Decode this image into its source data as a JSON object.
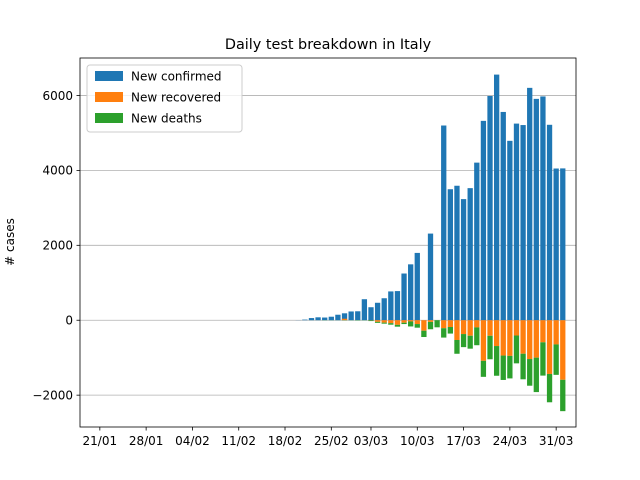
{
  "chart_data": {
    "type": "bar",
    "title": "Daily test breakdown in Italy",
    "xlabel": "",
    "ylabel": "# cases",
    "ylim": [
      -2850,
      7000
    ],
    "yticks": [
      -2000,
      0,
      2000,
      4000,
      6000
    ],
    "ytick_labels": [
      "−2000",
      "0",
      "2000",
      "4000",
      "6000"
    ],
    "xtick_labels": [
      "21/01",
      "28/01",
      "04/02",
      "11/02",
      "18/02",
      "25/02",
      "03/03",
      "10/03",
      "17/03",
      "24/03",
      "31/03"
    ],
    "xtick_day_index": [
      0,
      7,
      14,
      21,
      28,
      35,
      41,
      48,
      55,
      62,
      69
    ],
    "x_range_days": [
      -3,
      72
    ],
    "grid": "horizontal",
    "legend_position": "top-left",
    "series": [
      {
        "name": "New confirmed",
        "color": "#1f77b4"
      },
      {
        "name": "New recovered",
        "color": "#ff7f0e"
      },
      {
        "name": "New deaths",
        "color": "#2ca02c"
      }
    ],
    "start_date": "2020-01-21",
    "dates": [
      "21/01",
      "22/01",
      "23/01",
      "24/01",
      "25/01",
      "26/01",
      "27/01",
      "28/01",
      "29/01",
      "30/01",
      "31/01",
      "01/02",
      "02/02",
      "03/02",
      "04/02",
      "05/02",
      "06/02",
      "07/02",
      "08/02",
      "09/02",
      "10/02",
      "11/02",
      "12/02",
      "13/02",
      "14/02",
      "15/02",
      "16/02",
      "17/02",
      "18/02",
      "19/02",
      "20/02",
      "21/02",
      "22/02",
      "23/02",
      "24/02",
      "25/02",
      "26/02",
      "27/02",
      "28/02",
      "29/02",
      "01/03",
      "02/03",
      "03/03",
      "04/03",
      "05/03",
      "06/03",
      "07/03",
      "08/03",
      "09/03",
      "10/03",
      "11/03",
      "12/03",
      "13/03",
      "14/03",
      "15/03",
      "16/03",
      "17/03",
      "18/03",
      "19/03",
      "20/03",
      "21/03",
      "22/03",
      "23/03",
      "24/03",
      "25/03",
      "26/03",
      "27/03",
      "28/03",
      "29/03",
      "30/03",
      "31/03"
    ],
    "new_confirmed": [
      0,
      0,
      0,
      0,
      0,
      0,
      0,
      0,
      0,
      0,
      0,
      0,
      0,
      0,
      0,
      0,
      0,
      0,
      0,
      0,
      0,
      0,
      0,
      0,
      0,
      0,
      0,
      0,
      0,
      0,
      3,
      17,
      58,
      78,
      72,
      94,
      147,
      185,
      234,
      239,
      561,
      347,
      466,
      587,
      769,
      778,
      1247,
      1492,
      1797,
      0,
      2313,
      0,
      5198,
      3497,
      3590,
      3233,
      3526,
      4207,
      5322,
      5986,
      6557,
      5560,
      4789,
      5249,
      5210,
      6203,
      5909,
      5974,
      5217,
      4050,
      4053
    ],
    "new_recovered": [
      0,
      0,
      0,
      0,
      0,
      0,
      0,
      0,
      0,
      0,
      0,
      0,
      0,
      0,
      0,
      0,
      0,
      0,
      0,
      0,
      0,
      0,
      0,
      0,
      0,
      0,
      0,
      0,
      0,
      0,
      0,
      0,
      0,
      0,
      0,
      0,
      0,
      40,
      0,
      0,
      0,
      -4,
      -43,
      -64,
      -78,
      -123,
      -66,
      -33,
      -102,
      -280,
      -45,
      0,
      -213,
      -181,
      -527,
      -369,
      -414,
      -192,
      -1084,
      -415,
      -689,
      -943,
      -952,
      -408,
      -894,
      -1036,
      -999,
      -589,
      -1434,
      -646,
      -1590
    ],
    "new_deaths": [
      0,
      0,
      0,
      0,
      0,
      0,
      0,
      0,
      0,
      0,
      0,
      0,
      0,
      0,
      0,
      0,
      0,
      0,
      0,
      0,
      0,
      0,
      0,
      0,
      0,
      0,
      0,
      0,
      0,
      0,
      0,
      0,
      -1,
      -1,
      -4,
      -3,
      -2,
      -5,
      -4,
      -8,
      -5,
      -18,
      -27,
      -28,
      -41,
      -49,
      -36,
      -133,
      -97,
      -168,
      -196,
      -189,
      -250,
      -175,
      -368,
      -349,
      -345,
      -475,
      -427,
      -627,
      -793,
      -651,
      -601,
      -743,
      -683,
      -712,
      -919,
      -889,
      -756,
      -812,
      -837
    ]
  }
}
